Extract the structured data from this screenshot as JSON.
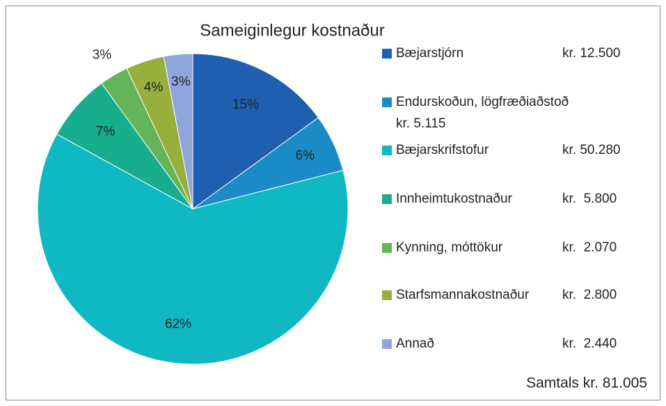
{
  "chart_data": {
    "type": "pie",
    "title": "Sameiginlegur kostnaður",
    "categories": [
      "Bæjarstjórn",
      "Endurskoðun, lögfræðiaðstoð",
      "Bæjarskrifstofur",
      "Innheimtukostnaður",
      "Kynning, móttökur",
      "Starfsmannakostnaður",
      "Annað"
    ],
    "amounts": [
      "kr. 12.500",
      "kr. 5.115",
      "kr. 50.280",
      "kr.  5.800",
      "kr.  2.070",
      "kr.  2.800",
      "kr.  2.440"
    ],
    "values": [
      15,
      6,
      62,
      7,
      3,
      4,
      3
    ],
    "value_labels": [
      "15%",
      "6%",
      "62%",
      "7%",
      "3%",
      "4%",
      "3%"
    ],
    "colors": [
      "#1f5fb0",
      "#1a8bc6",
      "#0fb8c2",
      "#17ae8e",
      "#64b45a",
      "#98af3e",
      "#8ea6dc"
    ],
    "total": "Samtals kr. 81.005"
  }
}
